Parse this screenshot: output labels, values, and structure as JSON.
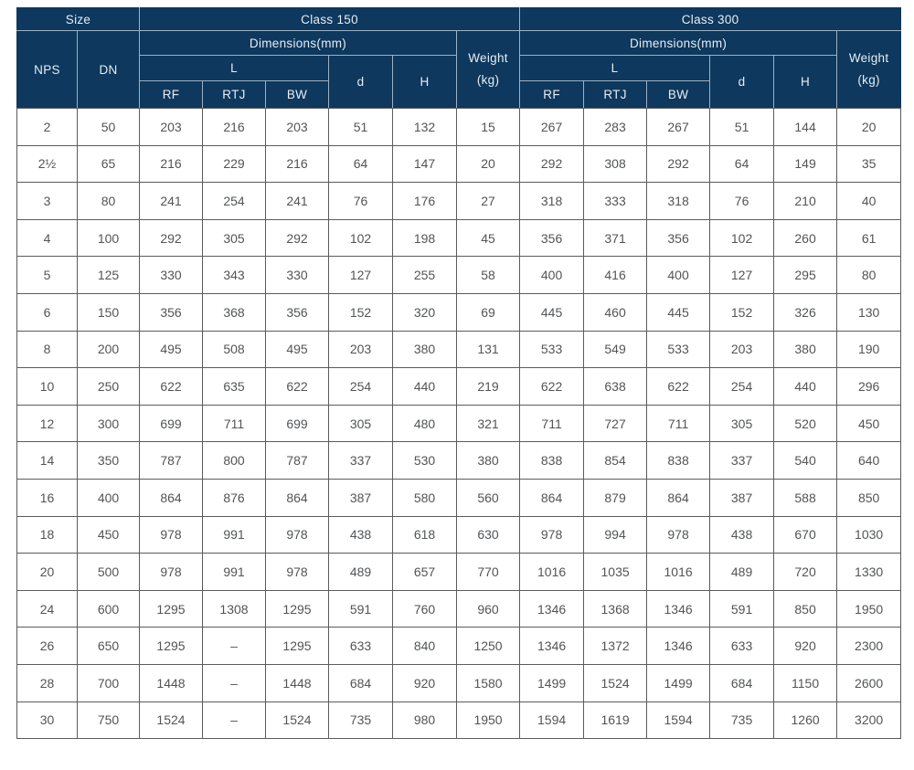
{
  "colors": {
    "header_background": "#0e385d",
    "header_text": "#e6edf4",
    "header_grid_line": "#9db1c4",
    "data_grid_line": "#5a5b5d",
    "data_text": "#525456",
    "page_background": "#ffffff"
  },
  "table": {
    "header": {
      "size": "Size",
      "class150": "Class 150",
      "class300": "Class 300",
      "dimensions": "Dimensions(mm)",
      "weight": "Weight\n(kg)",
      "nps": "NPS",
      "dn": "DN",
      "l": "L",
      "rf": "RF",
      "rtj": "RTJ",
      "bw": "BW",
      "d": "d",
      "h": "H"
    },
    "value_column_order": [
      "RF",
      "RTJ",
      "BW",
      "d",
      "H",
      "Weight (kg)"
    ],
    "rows": [
      {
        "nps": "2",
        "dn": "50",
        "class150": [
          "203",
          "216",
          "203",
          "51",
          "132",
          "15"
        ],
        "class300": [
          "267",
          "283",
          "267",
          "51",
          "144",
          "20"
        ]
      },
      {
        "nps": "2½",
        "dn": "65",
        "class150": [
          "216",
          "229",
          "216",
          "64",
          "147",
          "20"
        ],
        "class300": [
          "292",
          "308",
          "292",
          "64",
          "149",
          "35"
        ]
      },
      {
        "nps": "3",
        "dn": "80",
        "class150": [
          "241",
          "254",
          "241",
          "76",
          "176",
          "27"
        ],
        "class300": [
          "318",
          "333",
          "318",
          "76",
          "210",
          "40"
        ]
      },
      {
        "nps": "4",
        "dn": "100",
        "class150": [
          "292",
          "305",
          "292",
          "102",
          "198",
          "45"
        ],
        "class300": [
          "356",
          "371",
          "356",
          "102",
          "260",
          "61"
        ]
      },
      {
        "nps": "5",
        "dn": "125",
        "class150": [
          "330",
          "343",
          "330",
          "127",
          "255",
          "58"
        ],
        "class300": [
          "400",
          "416",
          "400",
          "127",
          "295",
          "80"
        ]
      },
      {
        "nps": "6",
        "dn": "150",
        "class150": [
          "356",
          "368",
          "356",
          "152",
          "320",
          "69"
        ],
        "class300": [
          "445",
          "460",
          "445",
          "152",
          "326",
          "130"
        ]
      },
      {
        "nps": "8",
        "dn": "200",
        "class150": [
          "495",
          "508",
          "495",
          "203",
          "380",
          "131"
        ],
        "class300": [
          "533",
          "549",
          "533",
          "203",
          "380",
          "190"
        ]
      },
      {
        "nps": "10",
        "dn": "250",
        "class150": [
          "622",
          "635",
          "622",
          "254",
          "440",
          "219"
        ],
        "class300": [
          "622",
          "638",
          "622",
          "254",
          "440",
          "296"
        ]
      },
      {
        "nps": "12",
        "dn": "300",
        "class150": [
          "699",
          "711",
          "699",
          "305",
          "480",
          "321"
        ],
        "class300": [
          "711",
          "727",
          "711",
          "305",
          "520",
          "450"
        ]
      },
      {
        "nps": "14",
        "dn": "350",
        "class150": [
          "787",
          "800",
          "787",
          "337",
          "530",
          "380"
        ],
        "class300": [
          "838",
          "854",
          "838",
          "337",
          "540",
          "640"
        ]
      },
      {
        "nps": "16",
        "dn": "400",
        "class150": [
          "864",
          "876",
          "864",
          "387",
          "580",
          "560"
        ],
        "class300": [
          "864",
          "879",
          "864",
          "387",
          "588",
          "850"
        ]
      },
      {
        "nps": "18",
        "dn": "450",
        "class150": [
          "978",
          "991",
          "978",
          "438",
          "618",
          "630"
        ],
        "class300": [
          "978",
          "994",
          "978",
          "438",
          "670",
          "1030"
        ]
      },
      {
        "nps": "20",
        "dn": "500",
        "class150": [
          "978",
          "991",
          "978",
          "489",
          "657",
          "770"
        ],
        "class300": [
          "1016",
          "1035",
          "1016",
          "489",
          "720",
          "1330"
        ]
      },
      {
        "nps": "24",
        "dn": "600",
        "class150": [
          "1295",
          "1308",
          "1295",
          "591",
          "760",
          "960"
        ],
        "class300": [
          "1346",
          "1368",
          "1346",
          "591",
          "850",
          "1950"
        ]
      },
      {
        "nps": "26",
        "dn": "650",
        "class150": [
          "1295",
          "–",
          "1295",
          "633",
          "840",
          "1250"
        ],
        "class300": [
          "1346",
          "1372",
          "1346",
          "633",
          "920",
          "2300"
        ]
      },
      {
        "nps": "28",
        "dn": "700",
        "class150": [
          "1448",
          "–",
          "1448",
          "684",
          "920",
          "1580"
        ],
        "class300": [
          "1499",
          "1524",
          "1499",
          "684",
          "1150",
          "2600"
        ]
      },
      {
        "nps": "30",
        "dn": "750",
        "class150": [
          "1524",
          "–",
          "1524",
          "735",
          "980",
          "1950"
        ],
        "class300": [
          "1594",
          "1619",
          "1594",
          "735",
          "1260",
          "3200"
        ]
      }
    ]
  }
}
